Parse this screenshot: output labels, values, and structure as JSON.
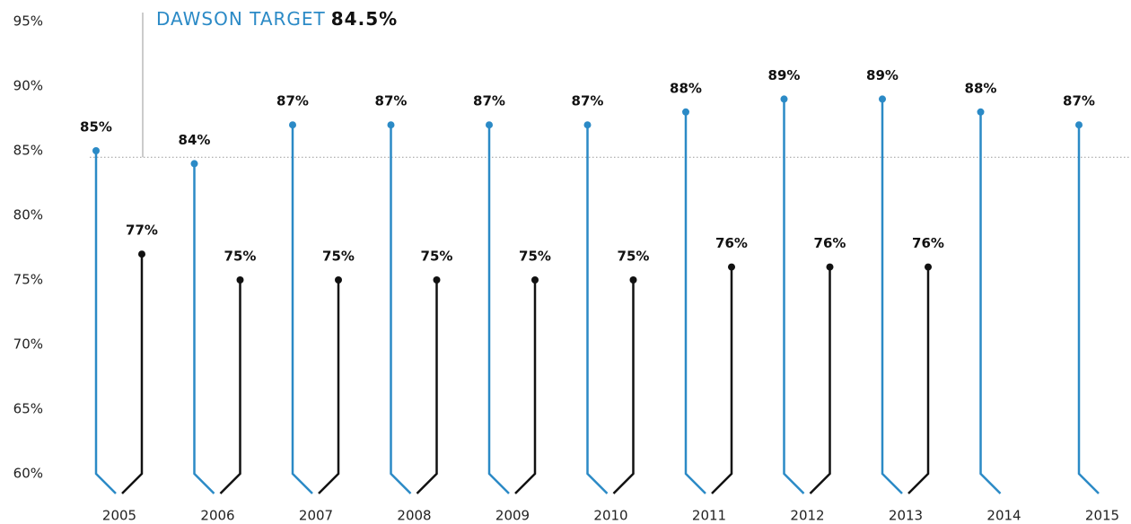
{
  "chart_data": {
    "type": "lollipop",
    "categories": [
      "2005",
      "2006",
      "2007",
      "2008",
      "2009",
      "2010",
      "2011",
      "2012",
      "2013",
      "2014",
      "2015"
    ],
    "series": [
      {
        "color": "#2b8ac6",
        "values": [
          85,
          84,
          87,
          87,
          87,
          87,
          88,
          89,
          89,
          88,
          87
        ],
        "value_labels": [
          "85%",
          "84%",
          "87%",
          "87%",
          "87%",
          "87%",
          "88%",
          "89%",
          "89%",
          "88%",
          "87%"
        ]
      },
      {
        "color": "#111111",
        "values": [
          77,
          75,
          75,
          75,
          75,
          75,
          76,
          76,
          76,
          null,
          null
        ],
        "value_labels": [
          "77%",
          "75%",
          "75%",
          "75%",
          "75%",
          "75%",
          "76%",
          "76%",
          "76%",
          null,
          null
        ]
      }
    ],
    "target": {
      "label": "DAWSON TARGET",
      "value": 84.5,
      "value_label": "84.5%"
    },
    "ylim": [
      60,
      95
    ],
    "yticks": [
      {
        "value": 60,
        "label": "60%"
      },
      {
        "value": 65,
        "label": "65%"
      },
      {
        "value": 70,
        "label": "70%"
      },
      {
        "value": 75,
        "label": "75%"
      },
      {
        "value": 80,
        "label": "80%"
      },
      {
        "value": 85,
        "label": "85%"
      },
      {
        "value": 90,
        "label": "90%"
      },
      {
        "value": 95,
        "label": "95%"
      }
    ]
  }
}
